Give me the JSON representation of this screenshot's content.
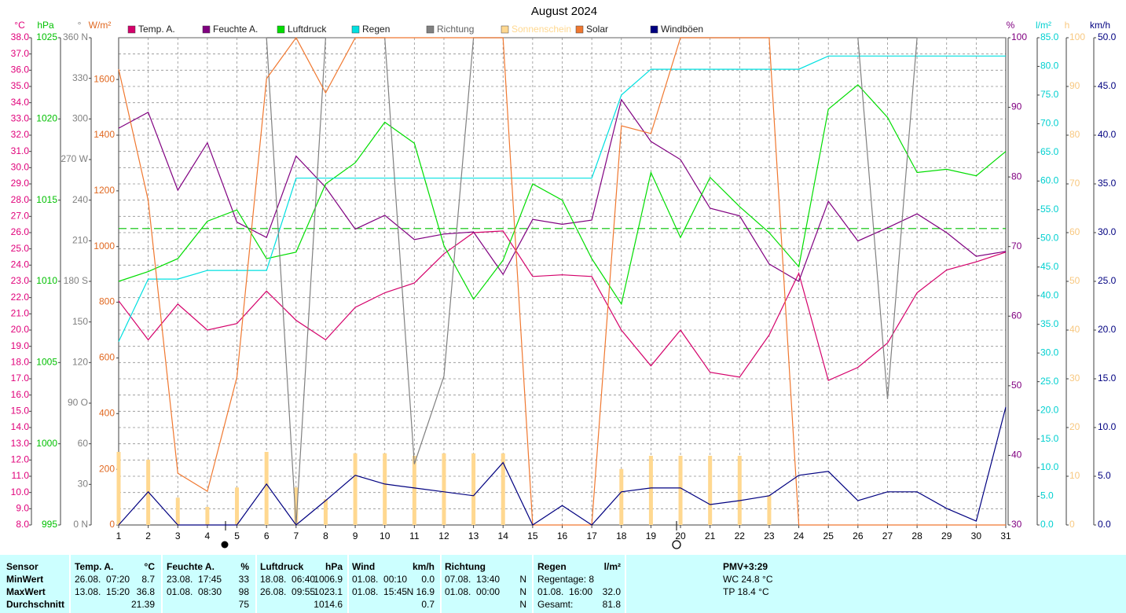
{
  "chart_data": {
    "type": "line",
    "title": "August 2024",
    "x": [
      1,
      2,
      3,
      4,
      5,
      6,
      7,
      8,
      9,
      10,
      11,
      12,
      13,
      14,
      15,
      16,
      17,
      18,
      19,
      20,
      21,
      22,
      23,
      24,
      25,
      26,
      27,
      28,
      29,
      30,
      31
    ],
    "xlim": [
      1,
      31
    ],
    "xticks": [
      1,
      2,
      3,
      4,
      5,
      6,
      7,
      8,
      9,
      10,
      11,
      12,
      13,
      14,
      15,
      16,
      17,
      18,
      19,
      20,
      21,
      22,
      23,
      24,
      25,
      26,
      27,
      28,
      29,
      30,
      31
    ],
    "grid": true,
    "axes": [
      {
        "unit": "°C",
        "color": "#e0007a",
        "side": "left",
        "lim": [
          8,
          38
        ],
        "ticks": [
          {
            "value": 8,
            "label": "8.0"
          },
          {
            "value": 9,
            "label": "9.0"
          },
          {
            "value": 10,
            "label": "10.0"
          },
          {
            "value": 11,
            "label": "11.0"
          },
          {
            "value": 12,
            "label": "12.0"
          },
          {
            "value": 13,
            "label": "13.0"
          },
          {
            "value": 14,
            "label": "14.0"
          },
          {
            "value": 15,
            "label": "15.0"
          },
          {
            "value": 16,
            "label": "16.0"
          },
          {
            "value": 17,
            "label": "17.0"
          },
          {
            "value": 18,
            "label": "18.0"
          },
          {
            "value": 19,
            "label": "19.0"
          },
          {
            "value": 20,
            "label": "20.0"
          },
          {
            "value": 21,
            "label": "21.0"
          },
          {
            "value": 22,
            "label": "22.0"
          },
          {
            "value": 23,
            "label": "23.0"
          },
          {
            "value": 24,
            "label": "24.0"
          },
          {
            "value": 25,
            "label": "25.0"
          },
          {
            "value": 26,
            "label": "26.0"
          },
          {
            "value": 27,
            "label": "27.0"
          },
          {
            "value": 28,
            "label": "28.0"
          },
          {
            "value": 29,
            "label": "29.0"
          },
          {
            "value": 30,
            "label": "30.0"
          },
          {
            "value": 31,
            "label": "31.0"
          },
          {
            "value": 32,
            "label": "32.0"
          },
          {
            "value": 33,
            "label": "33.0"
          },
          {
            "value": 34,
            "label": "34.0"
          },
          {
            "value": 35,
            "label": "35.0"
          },
          {
            "value": 36,
            "label": "36.0"
          },
          {
            "value": 37,
            "label": "37.0"
          },
          {
            "value": 38,
            "label": "38.0"
          }
        ]
      },
      {
        "unit": "hPa",
        "color": "#00c000",
        "side": "left",
        "lim": [
          995,
          1025
        ],
        "ticks": [
          995,
          1000,
          1005,
          1010,
          1015,
          1020,
          1025
        ]
      },
      {
        "unit": "°",
        "color": "#808080",
        "side": "left",
        "lim": [
          0,
          360
        ],
        "ticks": [
          {
            "value": 0,
            "label": "0 N"
          },
          30,
          60,
          {
            "value": 90,
            "label": "90 O"
          },
          120,
          150,
          {
            "value": 180,
            "label": "180 S"
          },
          210,
          240,
          {
            "value": 270,
            "label": "270 W"
          },
          300,
          330,
          {
            "value": 360,
            "label": "360 N"
          }
        ]
      },
      {
        "unit": "W/m²",
        "color": "#e06820",
        "side": "left",
        "lim": [
          0,
          1750
        ],
        "ticks": [
          0,
          200,
          400,
          600,
          800,
          1000,
          1200,
          1400,
          1600
        ]
      },
      {
        "unit": "%",
        "color": "#800080",
        "side": "right",
        "lim": [
          30,
          100
        ],
        "ticks": [
          30,
          40,
          50,
          60,
          70,
          80,
          90,
          100
        ]
      },
      {
        "unit": "l/m²",
        "color": "#00d0d0",
        "side": "right",
        "lim": [
          0,
          85
        ],
        "ticks": [
          {
            "value": 0,
            "label": "0.0"
          },
          {
            "value": 5,
            "label": "5.0"
          },
          {
            "value": 10,
            "label": "10.0"
          },
          {
            "value": 15,
            "label": "15.0"
          },
          {
            "value": 20,
            "label": "20.0"
          },
          {
            "value": 25,
            "label": "25.0"
          },
          {
            "value": 30,
            "label": "30.0"
          },
          {
            "value": 35,
            "label": "35.0"
          },
          {
            "value": 40,
            "label": "40.0"
          },
          {
            "value": 45,
            "label": "45.0"
          },
          {
            "value": 50,
            "label": "50.0"
          },
          {
            "value": 55,
            "label": "55.0"
          },
          {
            "value": 60,
            "label": "60.0"
          },
          {
            "value": 65,
            "label": "65.0"
          },
          {
            "value": 70,
            "label": "70.0"
          },
          {
            "value": 75,
            "label": "75.0"
          },
          {
            "value": 80,
            "label": "80.0"
          },
          {
            "value": 85,
            "label": "85.0"
          }
        ]
      },
      {
        "unit": "h",
        "color": "#f8c880",
        "side": "right",
        "lim": [
          0,
          100
        ],
        "ticks": [
          0,
          10,
          20,
          30,
          40,
          50,
          60,
          70,
          80,
          90,
          100
        ]
      },
      {
        "unit": "km/h",
        "color": "#000080",
        "side": "right",
        "lim": [
          0,
          50
        ],
        "ticks": [
          {
            "value": 0,
            "label": "0.0"
          },
          {
            "value": 5,
            "label": "5.0"
          },
          {
            "value": 10,
            "label": "10.0"
          },
          {
            "value": 15,
            "label": "15.0"
          },
          {
            "value": 20,
            "label": "20.0"
          },
          {
            "value": 25,
            "label": "25.0"
          },
          {
            "value": 30,
            "label": "30.0"
          },
          {
            "value": 35,
            "label": "35.0"
          },
          {
            "value": 40,
            "label": "40.0"
          },
          {
            "value": 45,
            "label": "45.0"
          },
          {
            "value": 50,
            "label": "50.0"
          }
        ]
      }
    ],
    "reference_line": {
      "axis": 1,
      "value": 1013.25,
      "color": "#00c000"
    },
    "series": [
      {
        "name": "Temp. A.",
        "color": "#d4006a",
        "type": "line",
        "axis": 0,
        "values": [
          21.8,
          19.4,
          21.6,
          20.0,
          20.4,
          22.4,
          20.6,
          19.4,
          21.4,
          22.3,
          22.9,
          24.7,
          26.0,
          26.1,
          23.3,
          23.4,
          23.3,
          20.0,
          17.8,
          20.0,
          17.4,
          17.1,
          19.7,
          23.5,
          16.9,
          17.7,
          19.2,
          22.3,
          23.7,
          24.2,
          24.8
        ]
      },
      {
        "name": "Feuchte A.",
        "color": "#800080",
        "type": "line",
        "axis": 4,
        "values": [
          87.0,
          89.3,
          78.1,
          84.9,
          73.5,
          71.3,
          83.0,
          78.5,
          72.5,
          74.5,
          71.0,
          71.8,
          72.1,
          66.0,
          73.9,
          73.2,
          73.8,
          91.1,
          85.1,
          82.5,
          75.5,
          74.4,
          67.5,
          65.0,
          76.5,
          70.8,
          72.7,
          74.7,
          72.0,
          68.6,
          69.3
        ]
      },
      {
        "name": "Luftdruck",
        "color": "#00dd00",
        "type": "line",
        "axis": 1,
        "values": [
          1010.0,
          1010.6,
          1011.4,
          1013.7,
          1014.4,
          1011.4,
          1011.8,
          1016.0,
          1017.3,
          1019.8,
          1018.5,
          1012.2,
          1008.9,
          1011.3,
          1016.0,
          1015.0,
          1011.4,
          1008.6,
          1016.7,
          1012.7,
          1016.4,
          1014.6,
          1013.0,
          1010.9,
          1020.6,
          1022.1,
          1020.1,
          1016.7,
          1016.9,
          1016.5,
          1018.0
        ]
      },
      {
        "name": "Regen",
        "color": "#00e0e0",
        "type": "line",
        "axis": 5,
        "values": [
          32.0,
          42.9,
          42.9,
          44.4,
          44.4,
          44.4,
          60.5,
          60.5,
          60.5,
          60.5,
          60.5,
          60.5,
          60.5,
          60.5,
          60.5,
          60.5,
          60.5,
          75.0,
          79.5,
          79.5,
          79.5,
          79.5,
          79.5,
          79.5,
          81.8,
          81.8,
          81.8,
          81.8,
          81.8,
          81.8,
          81.8
        ]
      },
      {
        "name": "Richtung",
        "color": "#808080",
        "type": "line",
        "axis": 2,
        "values": [
          360,
          360,
          360,
          360,
          360,
          360,
          0,
          360,
          360,
          360,
          45,
          110,
          360,
          360,
          360,
          360,
          360,
          360,
          360,
          360,
          360,
          360,
          360,
          360,
          360,
          360,
          93,
          360,
          360,
          360,
          360
        ]
      },
      {
        "name": "Sonnenschein",
        "color": "#ffd890",
        "type": "bar",
        "axis": 6,
        "values": [
          15.0,
          13.4,
          5.6,
          3.7,
          7.7,
          15.0,
          7.7,
          5.3,
          14.7,
          14.7,
          14.2,
          14.7,
          14.7,
          14.7,
          0,
          0,
          0,
          11.5,
          14.2,
          14.2,
          14.2,
          14.2,
          6.1,
          0,
          0,
          0,
          0,
          0,
          0,
          0,
          0
        ]
      },
      {
        "name": "Solar",
        "color": "#f07830",
        "type": "line",
        "axis": 3,
        "values": [
          1637,
          1166,
          186,
          121,
          531,
          1603,
          1750,
          1552,
          1750,
          1750,
          1750,
          1750,
          1750,
          1750,
          0,
          0,
          0,
          1434,
          1406,
          1750,
          1750,
          1750,
          1750,
          0,
          0,
          0,
          0,
          0,
          0,
          0,
          0
        ]
      },
      {
        "name": "Windböen",
        "color": "#000080",
        "type": "line",
        "axis": 7,
        "values": [
          0,
          3.4,
          0,
          0,
          0,
          4.2,
          0,
          2.5,
          5.1,
          4.2,
          3.8,
          3.4,
          3.0,
          6.4,
          0,
          2.0,
          0,
          3.4,
          3.8,
          3.8,
          2.1,
          2.5,
          3.0,
          5.1,
          5.5,
          2.5,
          3.4,
          3.4,
          1.7,
          0.4,
          12.1
        ]
      }
    ]
  },
  "table": {
    "row_labels": [
      "Sensor",
      "MinWert",
      "MaxWert",
      "Durchschnitt"
    ],
    "columns": [
      {
        "header": "Temp. A.",
        "unit": "°C",
        "rows": [
          {
            "left": "26.08.  07:20",
            "right": "8.7"
          },
          {
            "left": "13.08.  15:20",
            "right": "36.8"
          },
          {
            "right": "21.39"
          }
        ]
      },
      {
        "header": "Feuchte A.",
        "unit": "%",
        "rows": [
          {
            "left": "23.08.  17:45",
            "right": "33"
          },
          {
            "left": "01.08.  08:30",
            "right": "98"
          },
          {
            "right": "75"
          }
        ]
      },
      {
        "header": "Luftdruck",
        "unit": "hPa",
        "rows": [
          {
            "left": "18.08.  06:40",
            "right": "1006.9"
          },
          {
            "left": "26.08.  09:55",
            "right": "1023.1"
          },
          {
            "right": "1014.6"
          }
        ]
      },
      {
        "header": "Wind",
        "unit": "km/h",
        "rows": [
          {
            "left": "01.08.  00:10",
            "right": "0.0"
          },
          {
            "left": "01.08.  15:45",
            "right": "N 16.9"
          },
          {
            "right": "0.7"
          }
        ]
      },
      {
        "header": "Richtung",
        "rows": [
          {
            "left": "07.08.  13:40",
            "right": "N"
          },
          {
            "left": "01.08.  00:00",
            "right": "N"
          },
          {
            "right": "N"
          }
        ]
      },
      {
        "header": "Regen",
        "unit": "l/m²",
        "rows": [
          {
            "left": "Regentage: 8"
          },
          {
            "left": "01.08.  16:00",
            "right": "32.0"
          },
          {
            "left": "Gesamt:",
            "right": "81.8"
          }
        ]
      },
      {
        "header": "PMV+3:29",
        "rows": [
          {
            "left": "WC 24.8 °C"
          },
          {
            "left": "TP 18.4 °C"
          }
        ]
      }
    ]
  }
}
